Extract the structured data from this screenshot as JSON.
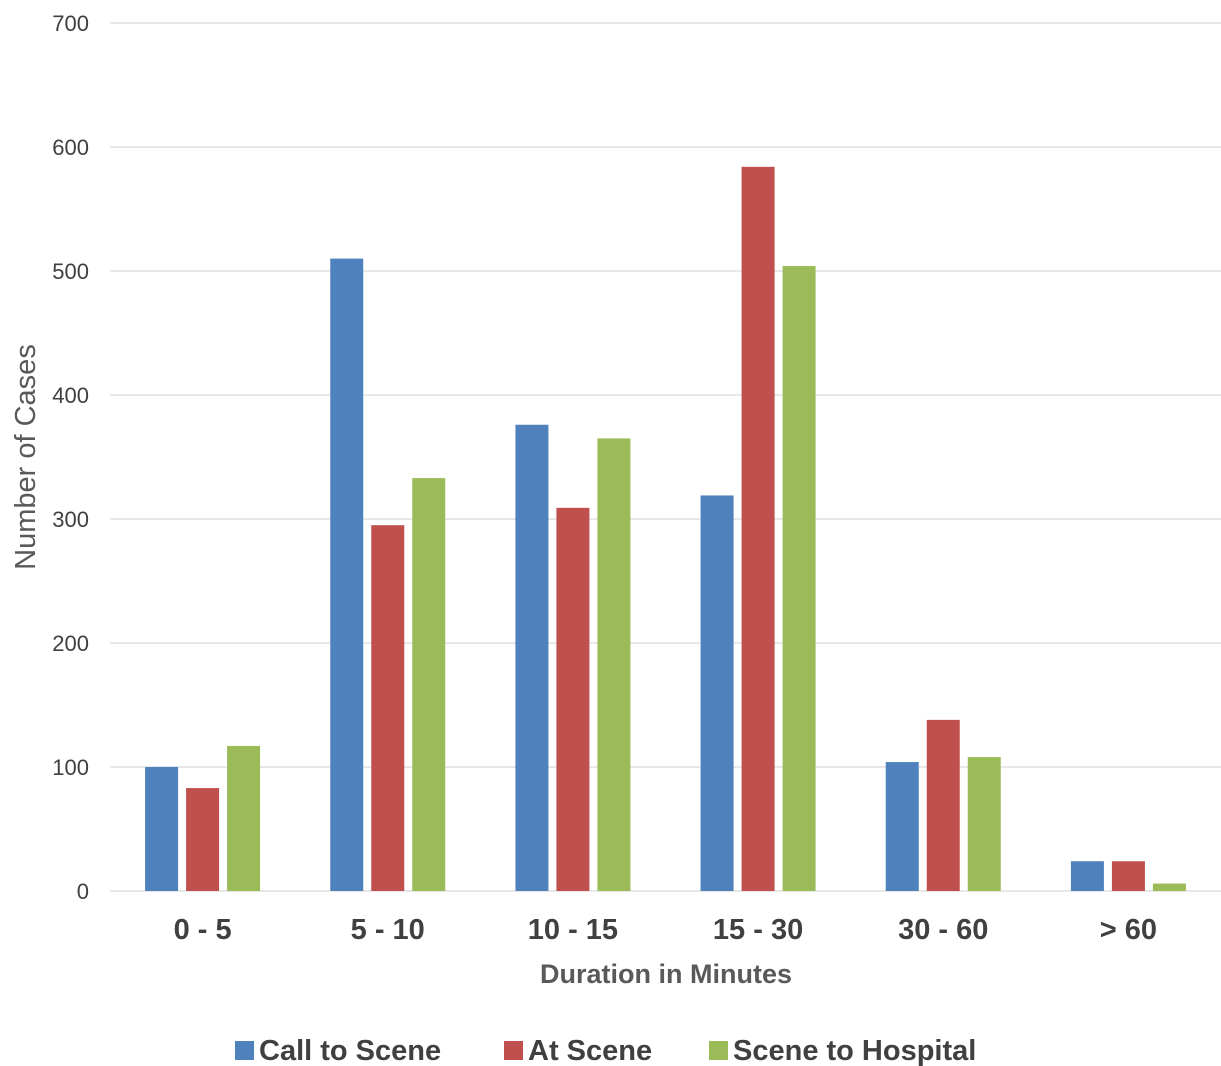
{
  "chart_data": {
    "type": "bar",
    "title": "",
    "xlabel": "Duration in Minutes",
    "ylabel": "Number of Cases",
    "categories": [
      "0 - 5",
      "5 - 10",
      "10 - 15",
      "15 - 30",
      "30 - 60",
      "> 60"
    ],
    "ylim": [
      0,
      700
    ],
    "yticks": [
      0,
      100,
      200,
      300,
      400,
      500,
      600,
      700
    ],
    "grid": true,
    "legend_position": "bottom",
    "series": [
      {
        "name": "Call to Scene",
        "color": "#4f81bd",
        "values": [
          100,
          510,
          376,
          319,
          104,
          24
        ]
      },
      {
        "name": "At Scene",
        "color": "#c0504d",
        "values": [
          83,
          295,
          309,
          584,
          138,
          24
        ]
      },
      {
        "name": "Scene to Hospital",
        "color": "#9bbb59",
        "values": [
          117,
          333,
          365,
          504,
          108,
          6
        ]
      }
    ]
  }
}
